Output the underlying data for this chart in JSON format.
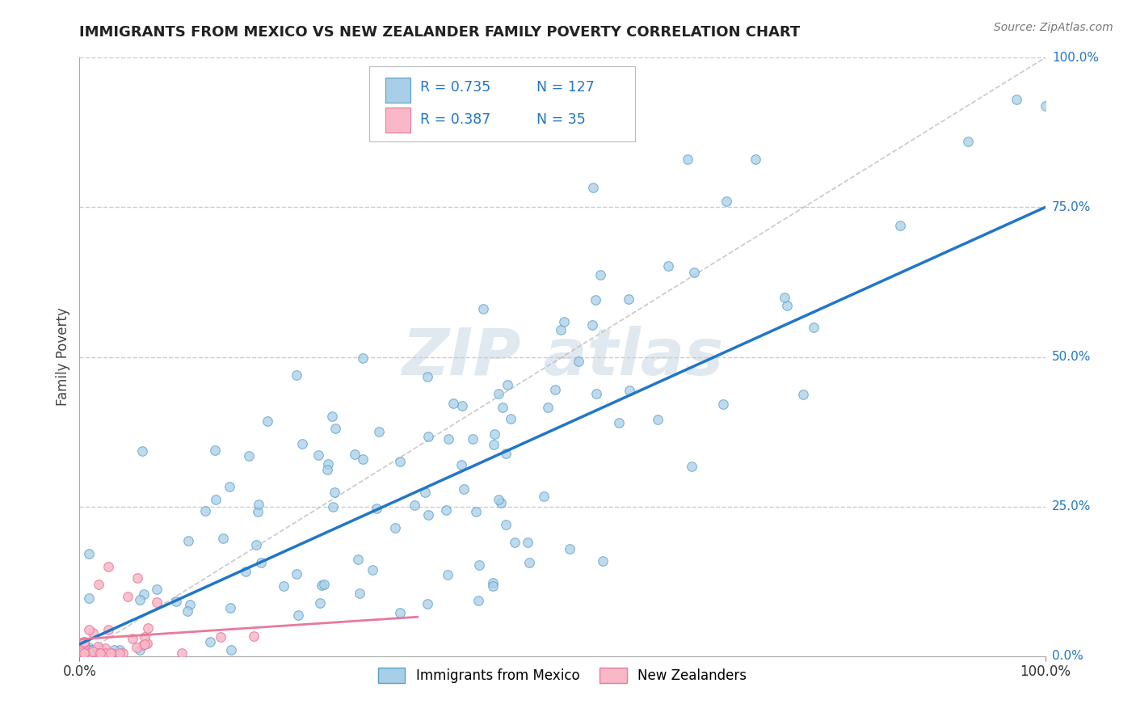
{
  "title": "IMMIGRANTS FROM MEXICO VS NEW ZEALANDER FAMILY POVERTY CORRELATION CHART",
  "source": "Source: ZipAtlas.com",
  "ylabel": "Family Poverty",
  "ytick_labels": [
    "0.0%",
    "25.0%",
    "50.0%",
    "75.0%",
    "100.0%"
  ],
  "ytick_positions": [
    0.0,
    0.25,
    0.5,
    0.75,
    1.0
  ],
  "legend1_R": "0.735",
  "legend1_N": "127",
  "legend2_R": "0.387",
  "legend2_N": "35",
  "blue_scatter_color": "#a8cfe8",
  "blue_edge_color": "#5b9ec9",
  "blue_line_color": "#2176c7",
  "pink_scatter_color": "#f9b8c8",
  "pink_edge_color": "#e8799a",
  "pink_line_color": "#e8799a",
  "legend_label1": "Immigrants from Mexico",
  "legend_label2": "New Zealanders",
  "grid_color": "#cccccc",
  "diag_color": "#c0c0c0",
  "text_blue": "#2176c7",
  "watermark_color": "#e0e8f0"
}
